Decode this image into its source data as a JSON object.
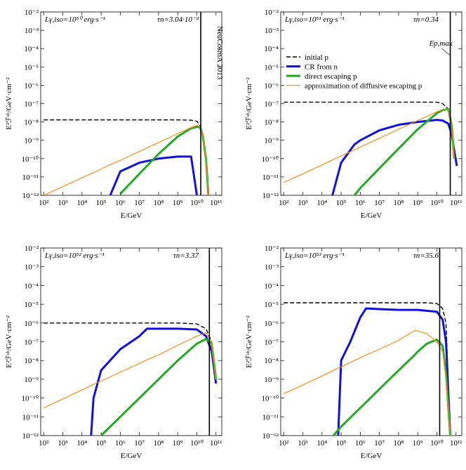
{
  "chart_data": [
    {
      "type": "line",
      "xlog": true,
      "ylog": true,
      "annotation": "Lγ,iso=10⁵⁰ erg·s⁻¹",
      "tau": "τn=3.04·10⁻²",
      "watermark": "NeuCosmA 2013",
      "xlabel": "E/GeV",
      "ylabel": "E²ℱˢʰ/GeV·cm⁻²",
      "vline": 16000000000.0,
      "xlim": [
        70,
        200000000000.0
      ],
      "ylim": [
        1e-12,
        0.01
      ],
      "xticks": [
        {
          "value": 100,
          "label": "10²"
        },
        {
          "value": 1000,
          "label": "10³"
        },
        {
          "value": 10000.0,
          "label": "10⁴"
        },
        {
          "value": 100000.0,
          "label": "10⁵"
        },
        {
          "value": 1000000.0,
          "label": "10⁶"
        },
        {
          "value": 10000000.0,
          "label": "10⁷"
        },
        {
          "value": 100000000.0,
          "label": "10⁸"
        },
        {
          "value": 1000000000.0,
          "label": "10⁹"
        },
        {
          "value": 10000000000.0,
          "label": "10¹⁰"
        },
        {
          "value": 100000000000.0,
          "label": "10¹¹"
        }
      ],
      "yticks": [
        {
          "value": 1e-12,
          "label": "10⁻¹²"
        },
        {
          "value": 1e-11,
          "label": "10⁻¹¹"
        },
        {
          "value": 1e-10,
          "label": "10⁻¹⁰"
        },
        {
          "value": 1e-09,
          "label": "10⁻⁹"
        },
        {
          "value": 1e-08,
          "label": "10⁻⁸"
        },
        {
          "value": 1e-07,
          "label": "10⁻⁷"
        },
        {
          "value": 1e-06,
          "label": "10⁻⁶"
        },
        {
          "value": 1e-05,
          "label": "10⁻⁵"
        },
        {
          "value": 0.0001,
          "label": "10⁻⁴"
        },
        {
          "value": 0.001,
          "label": "10⁻³"
        },
        {
          "value": 0.01,
          "label": "10⁻²"
        }
      ],
      "x": [
        100,
        1000,
        10000.0,
        100000.0,
        300000.0,
        1000000.0,
        10000000.0,
        100000000.0,
        1000000000.0,
        5000000000.0,
        10000000000.0,
        15000000000.0,
        20000000000.0,
        30000000000.0,
        40000000000.0
      ],
      "series": [
        {
          "color": "#000000",
          "style": "dashed",
          "values": [
            1.3e-08,
            1.3e-08,
            1.3e-08,
            1.3e-08,
            1.3e-08,
            1.3e-08,
            1.3e-08,
            1.3e-08,
            1.3e-08,
            1.25e-08,
            1.1e-08,
            6e-09,
            2e-09,
            1e-10,
            1e-12
          ]
        },
        {
          "color": "#1010e0",
          "values": [
            null,
            null,
            null,
            null,
            1e-12,
            2e-11,
            6e-11,
            1e-10,
            1.3e-10,
            1.3e-10,
            1e-12,
            null,
            null,
            null,
            null
          ]
        },
        {
          "color": "#22aa22",
          "values": [
            null,
            null,
            null,
            null,
            null,
            1.2e-12,
            1.5e-11,
            1.8e-10,
            1.6e-09,
            4.5e-09,
            5.5e-09,
            5e-09,
            2e-09,
            1e-10,
            1e-12
          ]
        },
        {
          "color": "#ff8c1a",
          "values": [
            1e-12,
            3e-12,
            9e-12,
            2.7e-11,
            4.7e-11,
            8e-11,
            2.5e-10,
            7.5e-10,
            2.3e-09,
            5e-09,
            6.5e-09,
            5.5e-09,
            2e-09,
            1e-10,
            1e-12
          ]
        }
      ]
    },
    {
      "type": "line",
      "xlog": true,
      "ylog": true,
      "annotation": "Lγ,iso=10⁵¹ erg·s⁻¹",
      "tau": "τn=0.34",
      "vline_label": "Ep,max",
      "legend": "left",
      "xlabel": "E/GeV",
      "ylabel": "E²ℱˢʰ/GeV·cm⁻²",
      "vline": 50000000000.0,
      "xlim": [
        70,
        200000000000.0
      ],
      "ylim": [
        1e-12,
        0.01
      ],
      "xticks": [
        {
          "value": 100,
          "label": "10²"
        },
        {
          "value": 1000,
          "label": "10³"
        },
        {
          "value": 10000.0,
          "label": "10⁴"
        },
        {
          "value": 100000.0,
          "label": "10⁵"
        },
        {
          "value": 1000000.0,
          "label": "10⁶"
        },
        {
          "value": 10000000.0,
          "label": "10⁷"
        },
        {
          "value": 100000000.0,
          "label": "10⁸"
        },
        {
          "value": 1000000000.0,
          "label": "10⁹"
        },
        {
          "value": 10000000000.0,
          "label": "10¹⁰"
        },
        {
          "value": 100000000000.0,
          "label": "10¹¹"
        }
      ],
      "yticks": [
        {
          "value": 1e-12,
          "label": "10⁻¹²"
        },
        {
          "value": 1e-11,
          "label": "10⁻¹¹"
        },
        {
          "value": 1e-10,
          "label": "10⁻¹⁰"
        },
        {
          "value": 1e-09,
          "label": "10⁻⁹"
        },
        {
          "value": 1e-08,
          "label": "10⁻⁸"
        },
        {
          "value": 1e-07,
          "label": "10⁻⁷"
        },
        {
          "value": 1e-06,
          "label": "10⁻⁶"
        },
        {
          "value": 1e-05,
          "label": "10⁻⁵"
        },
        {
          "value": 0.0001,
          "label": "10⁻⁴"
        },
        {
          "value": 0.001,
          "label": "10⁻³"
        },
        {
          "value": 0.01,
          "label": "10⁻²"
        }
      ],
      "x": [
        100,
        1000,
        10000.0,
        35000.0,
        100000.0,
        500000.0,
        1000000.0,
        10000000.0,
        100000000.0,
        1000000000.0,
        10000000000.0,
        20000000000.0,
        40000000000.0,
        60000000000.0,
        80000000000.0,
        110000000000.0
      ],
      "series": [
        {
          "name": "initial p",
          "color": "#000000",
          "style": "dashed",
          "values": [
            1.2e-07,
            1.2e-07,
            1.2e-07,
            1.2e-07,
            1.2e-07,
            1.2e-07,
            1.2e-07,
            1.2e-07,
            1.2e-07,
            1.2e-07,
            1.2e-07,
            1e-07,
            5e-08,
            5e-09,
            1e-10,
            null
          ]
        },
        {
          "name": "CR from n",
          "color": "#1010e0",
          "values": [
            null,
            null,
            null,
            1e-12,
            6e-11,
            6e-10,
            1e-09,
            3.5e-09,
            7e-09,
            1e-08,
            1.3e-08,
            1.2e-08,
            8e-09,
            2e-09,
            3e-10,
            4e-11
          ]
        },
        {
          "name": "direct escaping p",
          "color": "#22aa22",
          "values": [
            null,
            null,
            null,
            null,
            null,
            1e-12,
            2.5e-12,
            3e-11,
            3.5e-10,
            4e-09,
            3e-08,
            4.5e-08,
            5e-08,
            6e-09,
            1e-10,
            null
          ]
        },
        {
          "name": "approximation of diffusive escaping p",
          "color": "#ff8c1a",
          "values": [
            5e-12,
            1.5e-11,
            4.5e-11,
            8.5e-11,
            1.4e-10,
            3e-10,
            4.3e-10,
            1.3e-09,
            4e-09,
            1.2e-08,
            3.6e-08,
            4.8e-08,
            5e-08,
            6e-09,
            1e-10,
            null
          ]
        }
      ]
    },
    {
      "type": "line",
      "xlog": true,
      "ylog": true,
      "annotation": "Lγ,iso=10⁵² erg·s⁻¹",
      "tau": "τn=3.37",
      "xlabel": "E/GeV",
      "ylabel": "E²ℱˢʰ/GeV·cm⁻²",
      "vline": 45000000000.0,
      "xlim": [
        70,
        200000000000.0
      ],
      "ylim": [
        1e-12,
        0.01
      ],
      "xticks": [
        {
          "value": 100,
          "label": "10²"
        },
        {
          "value": 1000,
          "label": "10³"
        },
        {
          "value": 10000.0,
          "label": "10⁴"
        },
        {
          "value": 100000.0,
          "label": "10⁵"
        },
        {
          "value": 1000000.0,
          "label": "10⁶"
        },
        {
          "value": 10000000.0,
          "label": "10⁷"
        },
        {
          "value": 100000000.0,
          "label": "10⁸"
        },
        {
          "value": 1000000000.0,
          "label": "10⁹"
        },
        {
          "value": 10000000000.0,
          "label": "10¹⁰"
        },
        {
          "value": 100000000000.0,
          "label": "10¹¹"
        }
      ],
      "yticks": [
        {
          "value": 1e-12,
          "label": "10⁻¹²"
        },
        {
          "value": 1e-11,
          "label": "10⁻¹¹"
        },
        {
          "value": 1e-10,
          "label": "10⁻¹⁰"
        },
        {
          "value": 1e-09,
          "label": "10⁻⁹"
        },
        {
          "value": 1e-08,
          "label": "10⁻⁸"
        },
        {
          "value": 1e-07,
          "label": "10⁻⁷"
        },
        {
          "value": 1e-06,
          "label": "10⁻⁶"
        },
        {
          "value": 1e-05,
          "label": "10⁻⁵"
        },
        {
          "value": 0.0001,
          "label": "10⁻⁴"
        },
        {
          "value": 0.001,
          "label": "10⁻³"
        },
        {
          "value": 0.01,
          "label": "10⁻²"
        }
      ],
      "x": [
        100,
        1000,
        10000.0,
        30000.0,
        40000.0,
        100000.0,
        1000000.0,
        10000000.0,
        25000000.0,
        100000000.0,
        1000000000.0,
        10000000000.0,
        30000000000.0,
        60000000000.0,
        100000000000.0
      ],
      "series": [
        {
          "color": "#000000",
          "style": "dashed",
          "values": [
            1e-06,
            1e-06,
            1e-06,
            1e-06,
            1e-06,
            1e-06,
            1e-06,
            1e-06,
            1e-06,
            1e-06,
            1e-06,
            9e-07,
            5e-07,
            1e-07,
            1e-09
          ]
        },
        {
          "color": "#1010e0",
          "values": [
            null,
            null,
            null,
            1e-12,
            1e-10,
            3e-09,
            4e-08,
            2e-07,
            5e-07,
            5e-07,
            5e-07,
            4.5e-07,
            2e-07,
            3e-08,
            6e-10
          ]
        },
        {
          "color": "#22aa22",
          "values": [
            null,
            null,
            null,
            null,
            null,
            1e-12,
            1e-11,
            1e-10,
            2.5e-10,
            1e-09,
            1e-08,
            8e-08,
            1.4e-07,
            8e-08,
            1e-09
          ]
        },
        {
          "color": "#ff8c1a",
          "values": [
            3e-11,
            9e-11,
            2.7e-10,
            4.7e-10,
            5.4e-10,
            8e-10,
            2.4e-09,
            7e-09,
            1.1e-08,
            2e-08,
            6.5e-08,
            2e-07,
            3e-07,
            1e-07,
            1e-09
          ]
        }
      ]
    },
    {
      "type": "line",
      "xlog": true,
      "ylog": true,
      "annotation": "Lγ,iso=10⁵³ erg·s⁻¹",
      "tau": "τn=35.6",
      "xlabel": "E/GeV",
      "ylabel": "E²ℱˢʰ/GeV·cm⁻²",
      "vline": 14000000000.0,
      "xlim": [
        70,
        200000000000.0
      ],
      "ylim": [
        1e-12,
        0.01
      ],
      "xticks": [
        {
          "value": 100,
          "label": "10²"
        },
        {
          "value": 1000,
          "label": "10³"
        },
        {
          "value": 10000.0,
          "label": "10⁴"
        },
        {
          "value": 100000.0,
          "label": "10⁵"
        },
        {
          "value": 1000000.0,
          "label": "10⁶"
        },
        {
          "value": 10000000.0,
          "label": "10⁷"
        },
        {
          "value": 100000000.0,
          "label": "10⁸"
        },
        {
          "value": 1000000000.0,
          "label": "10⁹"
        },
        {
          "value": 10000000000.0,
          "label": "10¹⁰"
        },
        {
          "value": 100000000000.0,
          "label": "10¹¹"
        }
      ],
      "yticks": [
        {
          "value": 1e-12,
          "label": "10⁻¹²"
        },
        {
          "value": 1e-11,
          "label": "10⁻¹¹"
        },
        {
          "value": 1e-10,
          "label": "10⁻¹⁰"
        },
        {
          "value": 1e-09,
          "label": "10⁻⁹"
        },
        {
          "value": 1e-08,
          "label": "10⁻⁸"
        },
        {
          "value": 1e-07,
          "label": "10⁻⁷"
        },
        {
          "value": 1e-06,
          "label": "10⁻⁶"
        },
        {
          "value": 1e-05,
          "label": "10⁻⁵"
        },
        {
          "value": 0.0001,
          "label": "10⁻⁴"
        },
        {
          "value": 0.001,
          "label": "10⁻³"
        },
        {
          "value": 0.01,
          "label": "10⁻²"
        }
      ],
      "x": [
        100,
        1000,
        10000.0,
        40000.0,
        70000.0,
        100000.0,
        300000.0,
        1000000.0,
        2000000.0,
        10000000.0,
        100000000.0,
        700000000.0,
        1000000000.0,
        3000000000.0,
        10000000000.0,
        20000000000.0,
        30000000000.0,
        50000000000.0
      ],
      "series": [
        {
          "color": "#000000",
          "style": "dashed",
          "values": [
            1.2e-05,
            1.2e-05,
            1.2e-05,
            1.2e-05,
            1.2e-05,
            1.2e-05,
            1.2e-05,
            1.2e-05,
            1.2e-05,
            1.2e-05,
            1.2e-05,
            1.2e-05,
            1.2e-05,
            1.2e-05,
            1.1e-05,
            6e-06,
            1e-06,
            1e-12
          ]
        },
        {
          "color": "#1010e0",
          "values": [
            null,
            null,
            null,
            null,
            1e-12,
            1e-08,
            1e-07,
            2e-06,
            6e-06,
            5.5e-06,
            5e-06,
            5e-06,
            5e-06,
            4.5e-06,
            4e-06,
            1.5e-06,
            1e-07,
            1e-12
          ]
        },
        {
          "color": "#22aa22",
          "values": [
            null,
            null,
            null,
            1e-12,
            2e-12,
            3e-12,
            9e-12,
            3e-11,
            6e-11,
            3e-10,
            3e-09,
            2e-08,
            3e-08,
            8e-08,
            1.3e-07,
            6e-08,
            2e-09,
            1e-12
          ]
        },
        {
          "color": "#ff8c1a",
          "values": [
            1.7e-10,
            5e-10,
            1.5e-09,
            3e-09,
            4e-09,
            4.5e-09,
            8e-09,
            1.4e-08,
            2e-08,
            4e-08,
            1.2e-07,
            4e-07,
            3.8e-07,
            2.7e-07,
            1e-07,
            3e-08,
            1e-09,
            1e-12
          ]
        }
      ]
    }
  ]
}
